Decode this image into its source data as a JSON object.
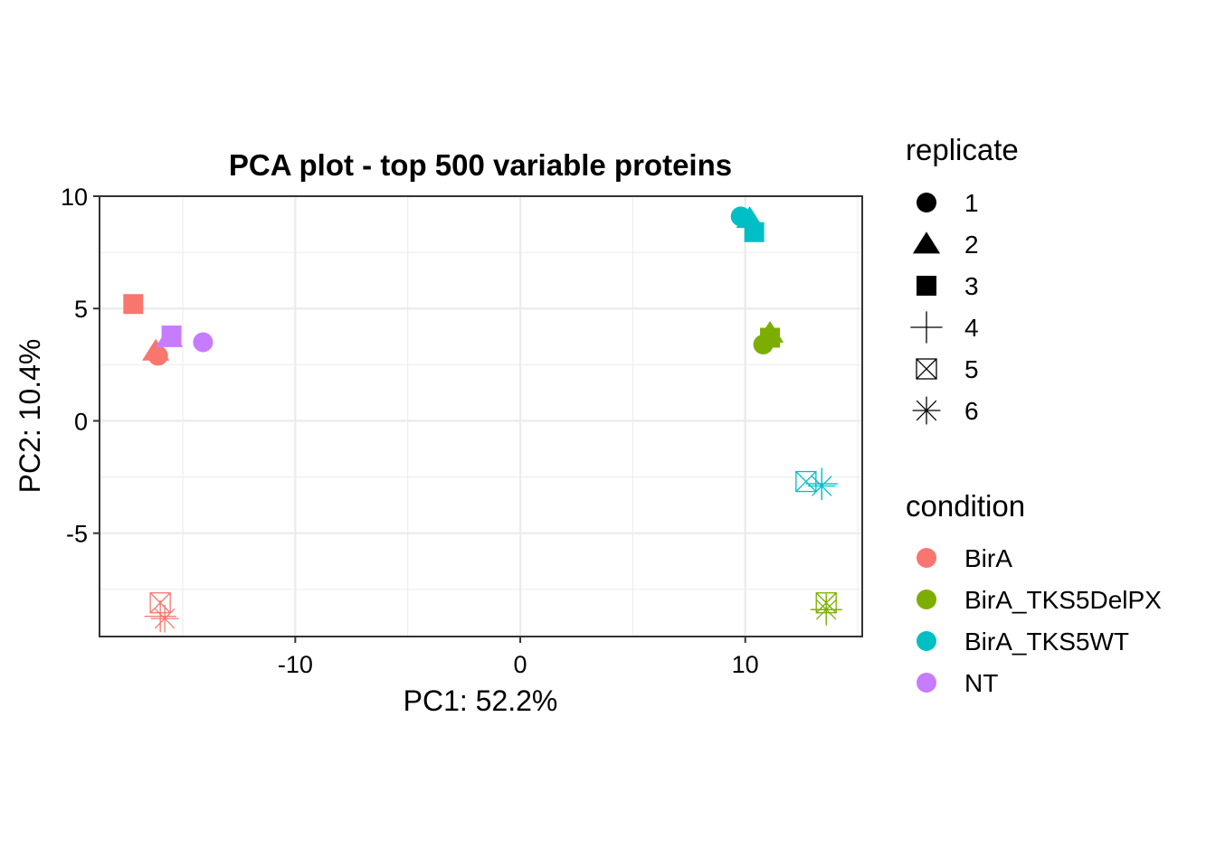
{
  "chart_data": {
    "type": "scatter",
    "title": "PCA plot - top 500 variable proteins",
    "xlabel": "PC1: 52.2%",
    "ylabel": "PC2: 10.4%",
    "xlim": [
      -18.7,
      15.2
    ],
    "ylim": [
      -9.6,
      10
    ],
    "xticks": [
      -10,
      0,
      10
    ],
    "yticks": [
      -5,
      0,
      5,
      10
    ],
    "grid": true,
    "legend_position": "right",
    "legends": {
      "replicate": {
        "title": "replicate",
        "items": [
          {
            "label": "1",
            "shape": "circle"
          },
          {
            "label": "2",
            "shape": "triangle"
          },
          {
            "label": "3",
            "shape": "square"
          },
          {
            "label": "4",
            "shape": "plus"
          },
          {
            "label": "5",
            "shape": "square-cross"
          },
          {
            "label": "6",
            "shape": "asterisk"
          }
        ]
      },
      "condition": {
        "title": "condition",
        "items": [
          {
            "label": "BirA",
            "color": "#F8766D"
          },
          {
            "label": "BirA_TKS5DelPX",
            "color": "#7CAE00"
          },
          {
            "label": "BirA_TKS5WT",
            "color": "#00BFC4"
          },
          {
            "label": "NT",
            "color": "#C77CFF"
          }
        ]
      }
    },
    "points": [
      {
        "condition": "BirA",
        "replicate": "1",
        "x": -16.1,
        "y": 2.9
      },
      {
        "condition": "BirA",
        "replicate": "2",
        "x": -16.2,
        "y": 3.1
      },
      {
        "condition": "BirA",
        "replicate": "3",
        "x": -17.2,
        "y": 5.2
      },
      {
        "condition": "BirA",
        "replicate": "4",
        "x": -16.0,
        "y": -8.7
      },
      {
        "condition": "BirA",
        "replicate": "5",
        "x": -16.0,
        "y": -8.1
      },
      {
        "condition": "BirA",
        "replicate": "6",
        "x": -15.8,
        "y": -8.8
      },
      {
        "condition": "NT",
        "replicate": "1",
        "x": -14.1,
        "y": 3.5
      },
      {
        "condition": "NT",
        "replicate": "2",
        "x": -15.6,
        "y": 3.7
      },
      {
        "condition": "NT",
        "replicate": "3",
        "x": -15.5,
        "y": 3.8
      },
      {
        "condition": "BirA_TKS5WT",
        "replicate": "1",
        "x": 9.8,
        "y": 9.1
      },
      {
        "condition": "BirA_TKS5WT",
        "replicate": "2",
        "x": 10.2,
        "y": 9.0
      },
      {
        "condition": "BirA_TKS5WT",
        "replicate": "3",
        "x": 10.4,
        "y": 8.4
      },
      {
        "condition": "BirA_TKS5WT",
        "replicate": "5",
        "x": 12.7,
        "y": -2.7
      },
      {
        "condition": "BirA_TKS5WT",
        "replicate": "6",
        "x": 13.4,
        "y": -2.9
      },
      {
        "condition": "BirA_TKS5WT",
        "replicate": "4",
        "x": 13.4,
        "y": -2.8
      },
      {
        "condition": "BirA_TKS5DelPX",
        "replicate": "1",
        "x": 10.8,
        "y": 3.4
      },
      {
        "condition": "BirA_TKS5DelPX",
        "replicate": "2",
        "x": 11.1,
        "y": 3.9
      },
      {
        "condition": "BirA_TKS5DelPX",
        "replicate": "3",
        "x": 11.1,
        "y": 3.7
      },
      {
        "condition": "BirA_TKS5DelPX",
        "replicate": "4",
        "x": 13.6,
        "y": -8.4
      },
      {
        "condition": "BirA_TKS5DelPX",
        "replicate": "5",
        "x": 13.6,
        "y": -8.1
      },
      {
        "condition": "BirA_TKS5DelPX",
        "replicate": "6",
        "x": 13.6,
        "y": -8.4
      }
    ]
  }
}
